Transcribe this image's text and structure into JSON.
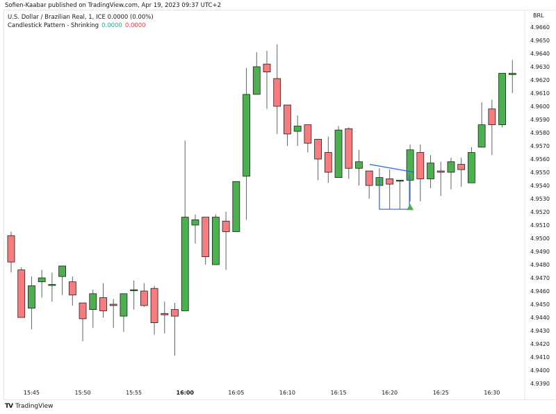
{
  "header": {
    "published": "Sofien-Kaabar published on TradingView.com, Apr 19, 2023 09:37 UTC+2"
  },
  "legend": {
    "symbol_line": "U.S. Dollar / Brazilian Real, 1, ICE  0.0000 (0.00%)",
    "indicator_name": "Candlestick Pattern - Shrinking",
    "indicator_value_1": "0.0000",
    "indicator_value_2": "0.0000"
  },
  "footer": {
    "logo_glyph": "TV",
    "brand": "TradingView"
  },
  "colors": {
    "up": "#4caf50",
    "down": "#f77c80",
    "border": "#1e1e1e",
    "wick": "#5d606b",
    "pattern_line": "#2962ff",
    "signal": "#4caf50"
  },
  "chart_data": {
    "type": "candlestick",
    "title": "U.S. Dollar / Brazilian Real, 1, ICE",
    "subtitle": "Candlestick Pattern - Shrinking",
    "currency_label": "BRL",
    "ylim": [
      4.9385,
      4.9665
    ],
    "y_ticks": [
      "4.9660",
      "4.9650",
      "4.9640",
      "4.9630",
      "4.9620",
      "4.9610",
      "4.9600",
      "4.9590",
      "4.9580",
      "4.9570",
      "4.9560",
      "4.9550",
      "4.9540",
      "4.9530",
      "4.9520",
      "4.9510",
      "4.9500",
      "4.9490",
      "4.9480",
      "4.9470",
      "4.9460",
      "4.9450",
      "4.9440",
      "4.9430",
      "4.9420",
      "4.9410",
      "4.9400",
      "4.9390"
    ],
    "x_ticks": [
      "15:45",
      "15:50",
      "15:55",
      "16:00",
      "16:05",
      "16:10",
      "16:15",
      "16:20",
      "16:25",
      "16:30"
    ],
    "x_tick_bold": "16:00",
    "grid": false,
    "candles": [
      {
        "o": 4.9502,
        "h": 4.9505,
        "l": 4.9474,
        "c": 4.9482
      },
      {
        "o": 4.9476,
        "h": 4.9478,
        "l": 4.944,
        "c": 4.944
      },
      {
        "o": 4.9447,
        "h": 4.9471,
        "l": 4.9431,
        "c": 4.9464
      },
      {
        "o": 4.9467,
        "h": 4.9476,
        "l": 4.9455,
        "c": 4.947
      },
      {
        "o": 4.9465,
        "h": 4.9474,
        "l": 4.9452,
        "c": 4.9465
      },
      {
        "o": 4.9471,
        "h": 4.9478,
        "l": 4.9457,
        "c": 4.9479
      },
      {
        "o": 4.9467,
        "h": 4.9471,
        "l": 4.9449,
        "c": 4.9457
      },
      {
        "o": 4.9451,
        "h": 4.9451,
        "l": 4.9422,
        "c": 4.9439
      },
      {
        "o": 4.9446,
        "h": 4.9461,
        "l": 4.9432,
        "c": 4.9458
      },
      {
        "o": 4.9455,
        "h": 4.9466,
        "l": 4.944,
        "c": 4.9445
      },
      {
        "o": 4.945,
        "h": 4.9454,
        "l": 4.9432,
        "c": 4.9449
      },
      {
        "o": 4.9441,
        "h": 4.9457,
        "l": 4.9429,
        "c": 4.9458
      },
      {
        "o": 4.9461,
        "h": 4.9468,
        "l": 4.9446,
        "c": 4.9461
      },
      {
        "o": 4.946,
        "h": 4.9466,
        "l": 4.9448,
        "c": 4.9449
      },
      {
        "o": 4.9462,
        "h": 4.9464,
        "l": 4.9427,
        "c": 4.9436
      },
      {
        "o": 4.9443,
        "h": 4.9452,
        "l": 4.9428,
        "c": 4.9442
      },
      {
        "o": 4.9446,
        "h": 4.9451,
        "l": 4.9411,
        "c": 4.9441
      },
      {
        "o": 4.9445,
        "h": 4.9574,
        "l": 4.9445,
        "c": 4.9516
      },
      {
        "o": 4.951,
        "h": 4.9518,
        "l": 4.9496,
        "c": 4.9514
      },
      {
        "o": 4.9516,
        "h": 4.9516,
        "l": 4.948,
        "c": 4.9486
      },
      {
        "o": 4.948,
        "h": 4.9518,
        "l": 4.948,
        "c": 4.9516
      },
      {
        "o": 4.9513,
        "h": 4.952,
        "l": 4.9476,
        "c": 4.9505
      },
      {
        "o": 4.9505,
        "h": 4.9542,
        "l": 4.9505,
        "c": 4.9543
      },
      {
        "o": 4.9547,
        "h": 4.9629,
        "l": 4.9514,
        "c": 4.9609
      },
      {
        "o": 4.9609,
        "h": 4.9641,
        "l": 4.9609,
        "c": 4.963
      },
      {
        "o": 4.9632,
        "h": 4.9642,
        "l": 4.9598,
        "c": 4.9626
      },
      {
        "o": 4.9621,
        "h": 4.9647,
        "l": 4.9579,
        "c": 4.96
      },
      {
        "o": 4.9601,
        "h": 4.9589,
        "l": 4.957,
        "c": 4.9579
      },
      {
        "o": 4.9581,
        "h": 4.9593,
        "l": 4.957,
        "c": 4.9585
      },
      {
        "o": 4.9586,
        "h": 4.9582,
        "l": 4.9565,
        "c": 4.9572
      },
      {
        "o": 4.9575,
        "h": 4.9575,
        "l": 4.9544,
        "c": 4.956
      },
      {
        "o": 4.9565,
        "h": 4.9577,
        "l": 4.9542,
        "c": 4.955
      },
      {
        "o": 4.9546,
        "h": 4.9585,
        "l": 4.9546,
        "c": 4.9582
      },
      {
        "o": 4.9583,
        "h": 4.9584,
        "l": 4.9545,
        "c": 4.9553
      },
      {
        "o": 4.9553,
        "h": 4.9567,
        "l": 4.954,
        "c": 4.9558
      },
      {
        "o": 4.9551,
        "h": 4.9551,
        "l": 4.953,
        "c": 4.954
      },
      {
        "o": 4.954,
        "h": 4.9553,
        "l": 4.9522,
        "c": 4.9546
      },
      {
        "o": 4.9545,
        "h": 4.9552,
        "l": 4.9522,
        "c": 4.9541
      },
      {
        "o": 4.9544,
        "h": 4.9544,
        "l": 4.9522,
        "c": 4.9544
      },
      {
        "o": 4.9544,
        "h": 4.9571,
        "l": 4.9528,
        "c": 4.9567
      },
      {
        "o": 4.9565,
        "h": 4.9571,
        "l": 4.9528,
        "c": 4.9545
      },
      {
        "o": 4.9545,
        "h": 4.9563,
        "l": 4.9538,
        "c": 4.9557
      },
      {
        "o": 4.9551,
        "h": 4.9558,
        "l": 4.9532,
        "c": 4.955
      },
      {
        "o": 4.955,
        "h": 4.9561,
        "l": 4.9537,
        "c": 4.9558
      },
      {
        "o": 4.9556,
        "h": 4.9561,
        "l": 4.9539,
        "c": 4.9552
      },
      {
        "o": 4.9542,
        "h": 4.9569,
        "l": 4.9542,
        "c": 4.9565
      },
      {
        "o": 4.9569,
        "h": 4.9603,
        "l": 4.9569,
        "c": 4.9586
      },
      {
        "o": 4.9598,
        "h": 4.9605,
        "l": 4.9563,
        "c": 4.9586
      },
      {
        "o": 4.9586,
        "h": 4.9625,
        "l": 4.9584,
        "c": 4.9625
      },
      {
        "o": 4.9624,
        "h": 4.9635,
        "l": 4.961,
        "c": 4.9625
      }
    ],
    "annotations": [
      {
        "type": "shrinking-pattern-bracket",
        "from_index": 36,
        "to_index": 38,
        "price_top": 4.9555,
        "price_bottom": 4.9522
      },
      {
        "type": "bullish-signal-triangle",
        "index": 39,
        "price": 4.9524
      }
    ]
  }
}
